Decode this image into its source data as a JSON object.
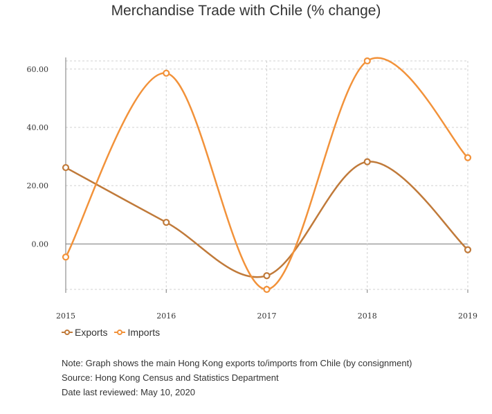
{
  "chart_data": {
    "type": "line",
    "title": "Merchandise Trade with Chile (% change)",
    "x": [
      "2015",
      "2016",
      "2017",
      "2018",
      "2019"
    ],
    "series": [
      {
        "name": "Exports",
        "color": "#c07a3a",
        "values": [
          26.2,
          7.4,
          -10.9,
          28.2,
          -2.0
        ]
      },
      {
        "name": "Imports",
        "color": "#f2923a",
        "values": [
          -4.5,
          58.6,
          -15.6,
          62.8,
          29.6
        ]
      }
    ],
    "yticks": [
      "0.00",
      "20.00",
      "40.00",
      "60.00"
    ],
    "ylim": [
      -15.6,
      62.8
    ],
    "grid": true,
    "smooth": true,
    "legend_position": "bottom-left"
  },
  "notes": {
    "note": "Note: Graph shows the main Hong Kong exports to/imports from Chile (by consignment)",
    "source": "Source: Hong Kong Census and Statistics Department",
    "reviewed": "Date last reviewed: May 10, 2020"
  }
}
